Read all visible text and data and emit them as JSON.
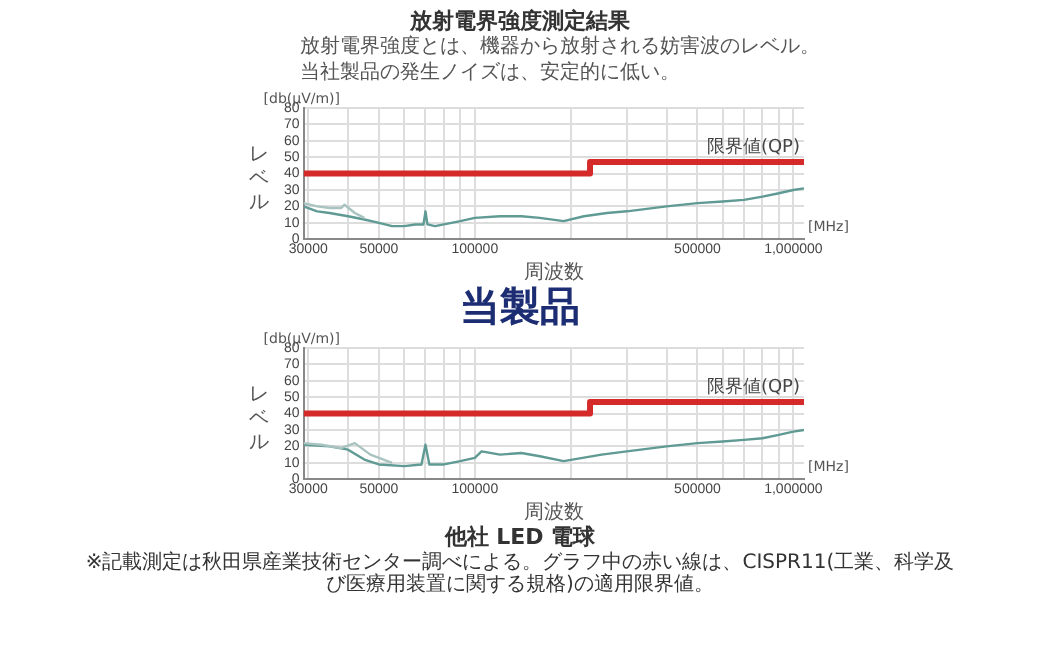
{
  "chart_data": [
    {
      "type": "line",
      "title": "放射電界強度測定結果",
      "subtitle": "放射電界強度とは、機器から放射される妨害波のレベル。当社製品の発生ノイズは、安定的に低い。",
      "xlabel": "周波数",
      "ylabel": "レベル",
      "annotations": [
        "[db(μV/m)]",
        "[MHz]",
        "当製品"
      ],
      "log": "x",
      "xlim": [
        29000,
        1080000
      ],
      "xticks": [
        30000,
        {
          "value": 40000,
          "label": null
        },
        50000,
        {
          "value": 60000,
          "label": null
        },
        {
          "value": 70000,
          "label": null
        },
        {
          "value": 80000,
          "label": null
        },
        {
          "value": 90000,
          "label": null
        },
        100000,
        {
          "value": 200000,
          "label": null
        },
        {
          "value": 300000,
          "label": null
        },
        {
          "value": 400000,
          "label": null
        },
        500000,
        {
          "value": 600000,
          "label": null
        },
        {
          "value": 700000,
          "label": null
        },
        {
          "value": 800000,
          "label": null
        },
        {
          "value": 900000,
          "label": null
        },
        {
          "value": 1000000,
          "label": "1,000000"
        }
      ],
      "ylim": [
        0,
        80
      ],
      "yticks": [
        0,
        10,
        20,
        30,
        40,
        50,
        60,
        70,
        80
      ],
      "grid": true,
      "legend": false,
      "marker": "none",
      "series": [
        {
          "color": "#a9c4c0",
          "x": [
            29000,
            32000,
            35000,
            38000,
            39000,
            42000,
            45000
          ],
          "values": [
            22,
            20,
            19,
            19,
            21,
            16,
            13
          ]
        },
        {
          "color": "#5f9a94",
          "x": [
            29000,
            32000,
            35000,
            40000,
            45000,
            50000,
            55000,
            60000,
            65000,
            69000,
            70000,
            71000,
            75000,
            80000,
            90000,
            100000,
            120000,
            140000,
            160000,
            190000,
            220000,
            260000,
            300000,
            400000,
            500000,
            600000,
            700000,
            800000,
            900000,
            1000000,
            1080000
          ],
          "values": [
            20,
            17,
            16,
            14,
            12,
            10,
            8,
            8,
            9,
            9,
            17,
            9,
            8,
            9,
            11,
            13,
            14,
            14,
            13,
            11,
            14,
            16,
            17,
            20,
            22,
            23,
            24,
            26,
            28,
            30,
            31
          ]
        },
        {
          "name": "限界値(QP)",
          "color": "#d42a2a",
          "x": [
            29000,
            230000,
            230000,
            1080000
          ],
          "values": [
            40,
            40,
            47,
            47
          ]
        }
      ]
    },
    {
      "type": "line",
      "xlabel": "周波数",
      "ylabel": "レベル",
      "annotations": [
        "[db(μV/m)]",
        "[MHz]",
        "他社 LED 電球",
        "※記載測定は秋田県産業技術センター調べによる。グラフ中の赤い線は、CISPR11(工業、科学及び医療用装置に関する規格)の適用限界値。"
      ],
      "log": "x",
      "xlim": [
        29000,
        1080000
      ],
      "xticks": [
        30000,
        {
          "value": 40000,
          "label": null
        },
        50000,
        {
          "value": 60000,
          "label": null
        },
        {
          "value": 70000,
          "label": null
        },
        {
          "value": 80000,
          "label": null
        },
        {
          "value": 90000,
          "label": null
        },
        100000,
        {
          "value": 200000,
          "label": null
        },
        {
          "value": 300000,
          "label": null
        },
        {
          "value": 400000,
          "label": null
        },
        500000,
        {
          "value": 600000,
          "label": null
        },
        {
          "value": 700000,
          "label": null
        },
        {
          "value": 800000,
          "label": null
        },
        {
          "value": 900000,
          "label": null
        },
        {
          "value": 1000000,
          "label": "1,000000"
        }
      ],
      "ylim": [
        0,
        80
      ],
      "yticks": [
        0,
        10,
        20,
        30,
        40,
        50,
        60,
        70,
        80
      ],
      "grid": true,
      "legend": false,
      "marker": "none",
      "series": [
        {
          "color": "#a9c4c0",
          "x": [
            29000,
            33000,
            38000,
            42000,
            47000,
            55000
          ],
          "values": [
            22,
            21,
            19,
            22,
            15,
            10
          ]
        },
        {
          "color": "#5f9a94",
          "x": [
            29000,
            35000,
            40000,
            45000,
            50000,
            60000,
            68000,
            70000,
            72000,
            80000,
            90000,
            100000,
            105000,
            120000,
            140000,
            160000,
            190000,
            250000,
            300000,
            400000,
            500000,
            600000,
            700000,
            800000,
            900000,
            1000000,
            1080000
          ],
          "values": [
            21,
            20,
            18,
            12,
            9,
            8,
            9,
            21,
            9,
            9,
            11,
            13,
            17,
            15,
            16,
            14,
            11,
            15,
            17,
            20,
            22,
            23,
            24,
            25,
            27,
            29,
            30
          ]
        },
        {
          "name": "限界値(QP)",
          "color": "#d42a2a",
          "x": [
            29000,
            230000,
            230000,
            1080000
          ],
          "values": [
            40,
            40,
            47,
            47
          ]
        }
      ]
    }
  ]
}
